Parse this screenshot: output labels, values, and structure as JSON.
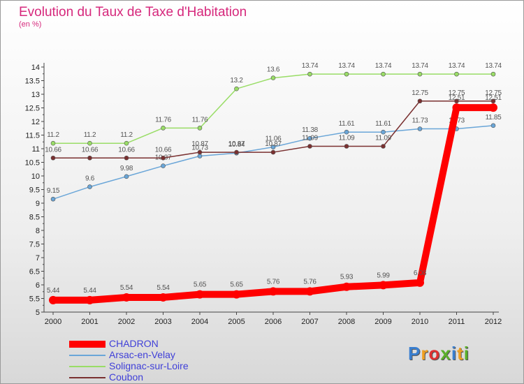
{
  "header": {
    "title": "Evolution du Taux de Taxe d'Habitation",
    "subtitle": "(en %)"
  },
  "chart_data": {
    "type": "line",
    "title": "Evolution du Taux de Taxe d'Habitation",
    "ylabel": "(en %)",
    "xlabel": "",
    "categories": [
      "2000",
      "2001",
      "2002",
      "2003",
      "2004",
      "2005",
      "2006",
      "2007",
      "2008",
      "2009",
      "2010",
      "2011",
      "2012"
    ],
    "ylim": [
      5,
      14
    ],
    "yticks": [
      "5",
      "5.5",
      "6",
      "6.5",
      "7",
      "7.5",
      "8",
      "8.5",
      "9",
      "9.5",
      "10",
      "10.5",
      "11",
      "11.5",
      "12",
      "12.5",
      "13",
      "13.5",
      "14"
    ],
    "grid": false,
    "legend_position": "bottom-left",
    "series": [
      {
        "name": "Solignac-sur-Loire",
        "color": "#99dd66",
        "values": [
          11.2,
          11.2,
          11.2,
          11.76,
          11.76,
          13.2,
          13.6,
          13.74,
          13.74,
          13.74,
          13.74,
          13.74,
          13.74
        ],
        "labels": [
          "11.2",
          "11.2",
          "11.2",
          "11.76",
          "11.76",
          "13.2",
          "13.6",
          "13.74",
          "13.74",
          "13.74",
          "13.74",
          "13.74",
          "13.74"
        ]
      },
      {
        "name": "Arsac-en-Velay",
        "color": "#6aa6d8",
        "values": [
          9.15,
          9.6,
          9.98,
          10.37,
          10.73,
          10.84,
          11.06,
          11.38,
          11.61,
          11.61,
          11.73,
          11.73,
          11.85
        ],
        "labels": [
          "9.15",
          "9.6",
          "9.98",
          "10.37",
          "10.73",
          "10.84",
          "11.06",
          "11.38",
          "11.61",
          "11.61",
          "11.73",
          "11.73",
          "11.85"
        ]
      },
      {
        "name": "Coubon",
        "color": "#7a3030",
        "values": [
          10.66,
          10.66,
          10.66,
          10.66,
          10.87,
          10.87,
          10.87,
          11.09,
          11.09,
          11.09,
          12.75,
          12.75,
          12.75
        ],
        "labels": [
          "10.66",
          "10.66",
          "10.66",
          "10.66",
          "10.87",
          "10.87",
          "10.87",
          "11.09",
          "11.09",
          "11.09",
          "12.75",
          "12.75",
          "12.75"
        ]
      },
      {
        "name": "CHADRON",
        "color": "#ff0000",
        "values": [
          5.44,
          5.44,
          5.54,
          5.54,
          5.65,
          5.65,
          5.76,
          5.76,
          5.93,
          5.99,
          6.08,
          12.51,
          12.51
        ],
        "labels": [
          "5.44",
          "5.44",
          "5.54",
          "5.54",
          "5.65",
          "5.65",
          "5.76",
          "5.76",
          "5.93",
          "5.99",
          "6.08",
          "12.51",
          "12.51"
        ]
      }
    ]
  },
  "legend": {
    "items": [
      {
        "label": "CHADRON",
        "color": "#ff0000"
      },
      {
        "label": "Arsac-en-Velay",
        "color": "#6aa6d8"
      },
      {
        "label": "Solignac-sur-Loire",
        "color": "#99dd66"
      },
      {
        "label": "Coubon",
        "color": "#7a3030"
      }
    ]
  },
  "logo": {
    "text": "Proxiti",
    "letter_colors": [
      "#3a7fd0",
      "#f0a020",
      "#e03030",
      "#5ab02a",
      "#3a7fd0",
      "#f0a020",
      "#5ab02a"
    ]
  }
}
